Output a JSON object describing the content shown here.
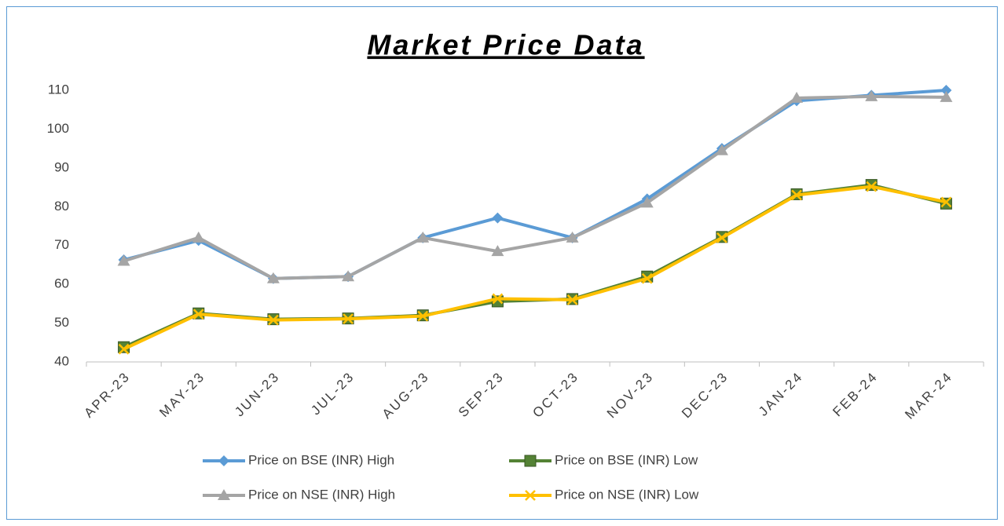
{
  "chart_data": {
    "type": "line",
    "title": "Market Price Data",
    "categories": [
      "APR-23",
      "MAY-23",
      "JUN-23",
      "JUL-23",
      "AUG-23",
      "SEP-23",
      "OCT-23",
      "NOV-23",
      "DEC-23",
      "JAN-24",
      "FEB-24",
      "MAR-24"
    ],
    "series": [
      {
        "name": "Price on BSE (INR) High",
        "color": "#5b9bd5",
        "marker": "diamond",
        "values": [
          66.3,
          71.3,
          61.5,
          62,
          72,
          77.1,
          72,
          82,
          95,
          107.3,
          108.7,
          110
        ]
      },
      {
        "name": "Price on BSE (INR) Low",
        "color": "#548235",
        "marker": "square",
        "values": [
          43.8,
          52.5,
          51,
          51.2,
          52,
          55.6,
          56.2,
          62,
          72.2,
          83.2,
          85.6,
          80.8
        ]
      },
      {
        "name": "Price on NSE (INR) High",
        "color": "#a5a5a5",
        "marker": "triangle",
        "values": [
          66,
          72,
          61.5,
          62,
          72,
          68.5,
          72,
          81,
          94.5,
          108,
          108.4,
          108.2
        ]
      },
      {
        "name": "Price on NSE (INR) Low",
        "color": "#ffc000",
        "marker": "x",
        "values": [
          43.3,
          52.3,
          50.8,
          51.1,
          51.8,
          56.3,
          56,
          61.5,
          72,
          83,
          85.2,
          81.2
        ]
      }
    ],
    "ylim": [
      40,
      110
    ],
    "yticks": [
      40,
      50,
      60,
      70,
      80,
      90,
      100,
      110
    ],
    "grid": false,
    "legend": "bottom"
  }
}
